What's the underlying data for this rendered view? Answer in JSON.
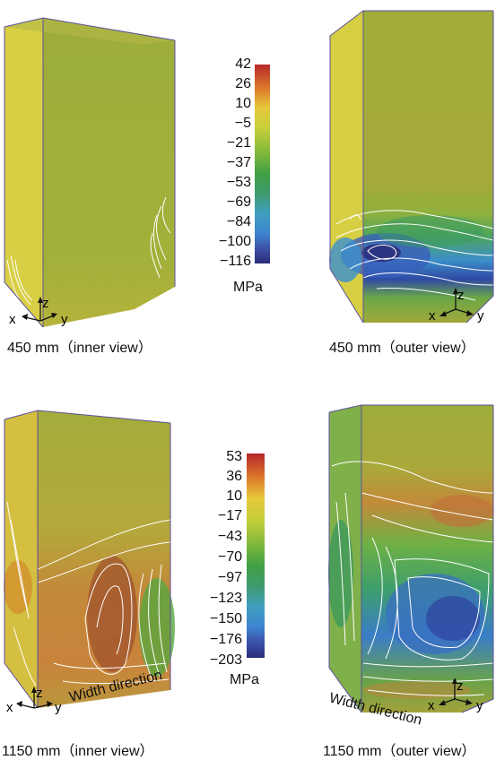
{
  "panels": [
    {
      "caption": "450 mm（inner view）",
      "axes": {
        "x": "x",
        "y": "y",
        "z": "z"
      }
    },
    {
      "caption": "450 mm（outer view）",
      "axes": {
        "x": "x",
        "y": "y",
        "z": "z"
      }
    },
    {
      "caption": "1150 mm（inner view）",
      "axes": {
        "x": "x",
        "y": "y",
        "z": "z"
      },
      "direction_label": "Width direction"
    },
    {
      "caption": "1150 mm（outer view）",
      "axes": {
        "x": "x",
        "y": "y",
        "z": "z"
      },
      "direction_label": "Width direction"
    }
  ],
  "colorbars": [
    {
      "unit": "MPa",
      "ticks": [
        "42",
        "26",
        "10",
        "−5",
        "−21",
        "−37",
        "−53",
        "−69",
        "−84",
        "−100",
        "−116"
      ]
    },
    {
      "unit": "MPa",
      "ticks": [
        "53",
        "36",
        "10",
        "−17",
        "−43",
        "−70",
        "−97",
        "−123",
        "−150",
        "−176",
        "−203"
      ]
    }
  ],
  "colors": {
    "scale": [
      "#b5282a",
      "#dd7a2a",
      "#e6c93a",
      "#c6cf3a",
      "#8fbd3a",
      "#3fa043",
      "#3f9a6f",
      "#3f9fc0",
      "#3e84cf",
      "#3b4da6",
      "#2b2c78"
    ],
    "yellow_green": "#a8b43a",
    "contour": "#ffffff",
    "frame": "#6a5aa8"
  }
}
